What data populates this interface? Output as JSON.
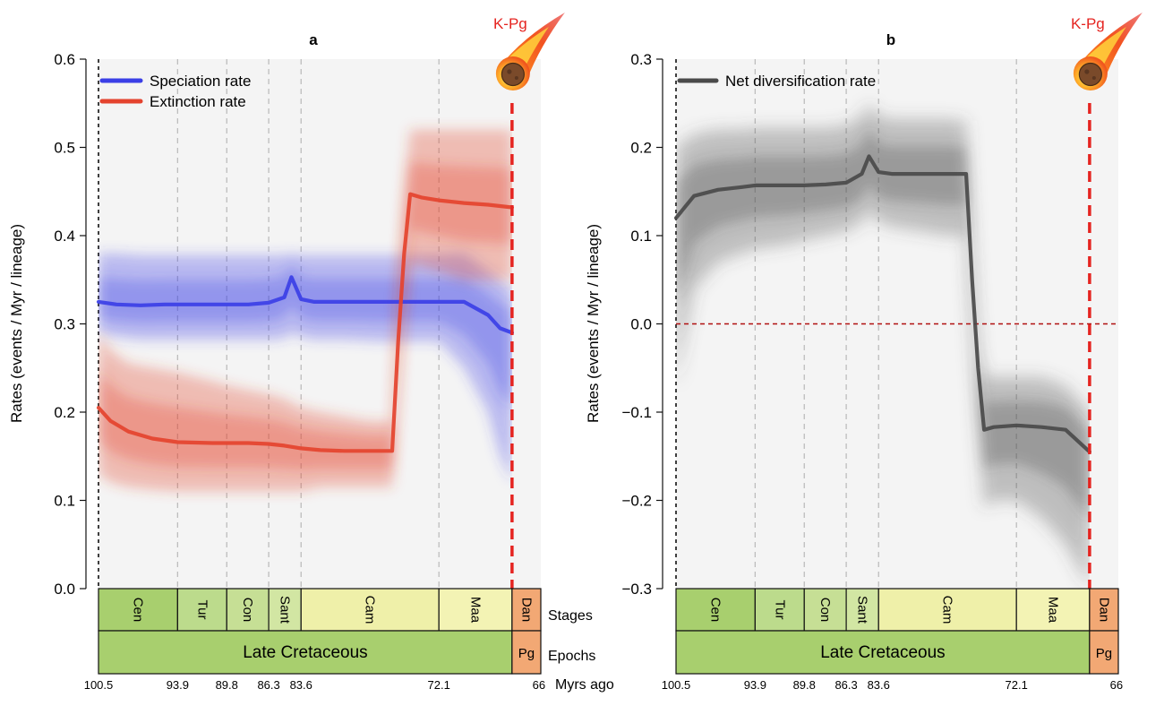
{
  "timescale": {
    "stages": [
      {
        "name": "Cen",
        "start": 100.5,
        "end": 93.9,
        "color": "#a8cf6e"
      },
      {
        "name": "Tur",
        "start": 93.9,
        "end": 89.8,
        "color": "#bcdb8c"
      },
      {
        "name": "Con",
        "start": 89.8,
        "end": 86.3,
        "color": "#c6df95"
      },
      {
        "name": "Sant",
        "start": 86.3,
        "end": 83.6,
        "color": "#d2e6a3"
      },
      {
        "name": "Cam",
        "start": 83.6,
        "end": 72.1,
        "color": "#eff0a9"
      },
      {
        "name": "Maa",
        "start": 72.1,
        "end": 66,
        "color": "#f3f3b4"
      },
      {
        "name": "Dan",
        "start": 66,
        "end": 63.6,
        "color": "#f2a874"
      }
    ],
    "epochs": [
      {
        "name": "Late Cretaceous",
        "start": 100.5,
        "end": 66,
        "color": "#a8cf6e"
      },
      {
        "name": "Pg",
        "start": 66,
        "end": 63.6,
        "color": "#f2a874"
      }
    ],
    "row_labels": {
      "stages": "Stages",
      "epochs": "Epochs",
      "ages": "Myrs ago"
    },
    "age_ticks": [
      100.5,
      93.9,
      89.8,
      86.3,
      83.6,
      72.1,
      66
    ],
    "age_tick_labels": [
      "100.5",
      "93.9",
      "89.8",
      "86.3",
      "83.6",
      "72.1",
      "66"
    ],
    "kpg_label": "K-Pg"
  },
  "colors": {
    "speciation": "#3b3fe6",
    "extinction": "#e4432e",
    "net": "#4a4a4a",
    "kpg": "#e52420",
    "zero_line": "#b01010",
    "panel_bg": "#f4f4f4"
  },
  "chart_data": [
    {
      "type": "line",
      "panel": "a",
      "title": "a",
      "xlabel": "",
      "ylabel": "Rates (events / Myr / lineage)",
      "xlim": [
        100.5,
        63.6
      ],
      "ylim": [
        0,
        0.6
      ],
      "yticks": [
        0,
        0.1,
        0.2,
        0.3,
        0.4,
        0.5,
        0.6
      ],
      "ytick_labels": [
        "0.0",
        "0.1",
        "0.2",
        "0.3",
        "0.4",
        "0.5",
        "0.6"
      ],
      "grid": false,
      "legend": "top-left",
      "series": [
        {
          "name": "Speciation rate",
          "color": "#3b3fe6",
          "x": [
            100.5,
            99,
            97,
            95,
            93.9,
            91,
            89.8,
            88,
            86.3,
            85,
            84.4,
            83.6,
            82.5,
            80,
            77,
            75,
            73,
            72.1,
            70,
            68,
            67,
            66
          ],
          "values": [
            0.325,
            0.322,
            0.321,
            0.322,
            0.322,
            0.322,
            0.322,
            0.322,
            0.324,
            0.33,
            0.353,
            0.328,
            0.325,
            0.325,
            0.325,
            0.325,
            0.325,
            0.325,
            0.325,
            0.31,
            0.295,
            0.29
          ],
          "band_upper": [
            0.38,
            0.38,
            0.378,
            0.378,
            0.378,
            0.378,
            0.378,
            0.378,
            0.378,
            0.378,
            0.38,
            0.378,
            0.378,
            0.378,
            0.378,
            0.378,
            0.378,
            0.378,
            0.38,
            0.36,
            0.35,
            0.34
          ],
          "band_lower": [
            0.29,
            0.285,
            0.282,
            0.282,
            0.282,
            0.282,
            0.282,
            0.282,
            0.282,
            0.283,
            0.29,
            0.285,
            0.282,
            0.282,
            0.28,
            0.28,
            0.28,
            0.28,
            0.25,
            0.2,
            0.15,
            0.12
          ]
        },
        {
          "name": "Extinction rate",
          "color": "#e4432e",
          "x": [
            100.5,
            99.5,
            98,
            96,
            93.9,
            91,
            89.8,
            88,
            86.3,
            85,
            83.6,
            82,
            80,
            78,
            76,
            75.5,
            75,
            74.5,
            73.5,
            72.1,
            70,
            68,
            66
          ],
          "values": [
            0.205,
            0.19,
            0.178,
            0.17,
            0.166,
            0.165,
            0.165,
            0.165,
            0.164,
            0.162,
            0.159,
            0.157,
            0.156,
            0.156,
            0.156,
            0.28,
            0.38,
            0.447,
            0.443,
            0.44,
            0.437,
            0.435,
            0.432
          ],
          "band_upper": [
            0.29,
            0.27,
            0.255,
            0.25,
            0.245,
            0.235,
            0.23,
            0.225,
            0.22,
            0.215,
            0.205,
            0.2,
            0.195,
            0.19,
            0.19,
            0.35,
            0.45,
            0.52,
            0.52,
            0.52,
            0.52,
            0.52,
            0.52
          ],
          "band_lower": [
            0.13,
            0.12,
            0.115,
            0.112,
            0.11,
            0.11,
            0.11,
            0.11,
            0.11,
            0.11,
            0.11,
            0.115,
            0.115,
            0.115,
            0.115,
            0.2,
            0.3,
            0.37,
            0.365,
            0.36,
            0.35,
            0.35,
            0.35
          ]
        }
      ]
    },
    {
      "type": "line",
      "panel": "b",
      "title": "b",
      "xlabel": "",
      "ylabel": "Rates (events / Myr / lineage)",
      "xlim": [
        100.5,
        63.6
      ],
      "ylim": [
        -0.3,
        0.3
      ],
      "yticks": [
        -0.3,
        -0.2,
        -0.1,
        0.0,
        0.1,
        0.2,
        0.3
      ],
      "ytick_labels": [
        "−0.3",
        "−0.2",
        "−0.1",
        "0.0",
        "0.1",
        "0.2",
        "0.3"
      ],
      "grid": false,
      "legend": "top-left",
      "reference_line": 0,
      "series": [
        {
          "name": "Net diversification rate",
          "color": "#4a4a4a",
          "x": [
            100.5,
            99,
            97,
            95,
            93.9,
            91,
            89.8,
            88,
            86.3,
            85,
            84.4,
            83.6,
            82.5,
            80,
            78,
            76.3,
            75.8,
            75.3,
            74.8,
            74,
            72.1,
            70,
            68,
            66
          ],
          "values": [
            0.12,
            0.145,
            0.152,
            0.155,
            0.157,
            0.157,
            0.157,
            0.158,
            0.16,
            0.17,
            0.19,
            0.172,
            0.17,
            0.17,
            0.17,
            0.17,
            0.05,
            -0.05,
            -0.12,
            -0.117,
            -0.115,
            -0.117,
            -0.12,
            -0.145
          ],
          "band_upper": [
            0.2,
            0.215,
            0.22,
            0.22,
            0.222,
            0.222,
            0.222,
            0.222,
            0.225,
            0.235,
            0.25,
            0.235,
            0.232,
            0.232,
            0.232,
            0.23,
            0.1,
            -0.02,
            -0.06,
            -0.06,
            -0.06,
            -0.06,
            -0.07,
            -0.1
          ],
          "band_lower": [
            -0.07,
            0.04,
            0.07,
            0.08,
            0.085,
            0.09,
            0.095,
            0.1,
            0.105,
            0.115,
            0.13,
            0.115,
            0.11,
            0.105,
            0.1,
            0.1,
            -0.02,
            -0.12,
            -0.21,
            -0.2,
            -0.2,
            -0.22,
            -0.25,
            -0.3
          ]
        }
      ]
    }
  ]
}
